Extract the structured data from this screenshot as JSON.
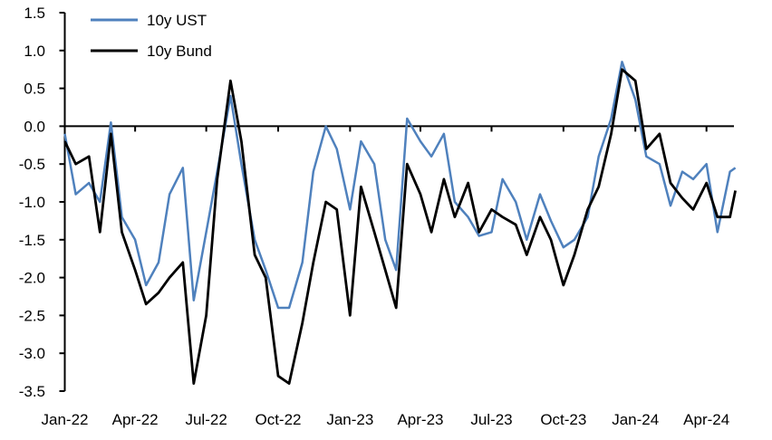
{
  "chart_data": {
    "type": "line",
    "title": "",
    "xlabel": "",
    "ylabel": "",
    "ylim": [
      -3.5,
      1.5
    ],
    "yticks": [
      1.5,
      1.0,
      0.5,
      0.0,
      -0.5,
      -1.0,
      -1.5,
      -2.0,
      -2.5,
      -3.0,
      -3.5
    ],
    "ytick_labels": [
      "1.5",
      "1.0",
      "0.5",
      "0.0",
      "-0.5",
      "-1.0",
      "-1.5",
      "-2.0",
      "-2.5",
      "-3.0",
      "-3.5"
    ],
    "xticks": [
      "2022-01-01",
      "2022-04-01",
      "2022-07-01",
      "2022-10-01",
      "2023-01-01",
      "2023-04-01",
      "2023-07-01",
      "2023-10-01",
      "2024-01-01",
      "2024-04-01"
    ],
    "xtick_labels": [
      "Jan-22",
      "Apr-22",
      "Jul-22",
      "Oct-22",
      "Jan-23",
      "Apr-23",
      "Jul-23",
      "Oct-23",
      "Jan-24",
      "Apr-24"
    ],
    "grid": false,
    "legend": "top-left",
    "x": [
      "2022-01-01",
      "2022-01-15",
      "2022-02-01",
      "2022-02-15",
      "2022-03-01",
      "2022-03-15",
      "2022-04-01",
      "2022-04-15",
      "2022-05-01",
      "2022-05-15",
      "2022-06-01",
      "2022-06-15",
      "2022-07-01",
      "2022-07-15",
      "2022-08-01",
      "2022-08-15",
      "2022-09-01",
      "2022-09-15",
      "2022-10-01",
      "2022-10-15",
      "2022-11-01",
      "2022-11-15",
      "2022-12-01",
      "2022-12-15",
      "2023-01-01",
      "2023-01-15",
      "2023-02-01",
      "2023-02-15",
      "2023-03-01",
      "2023-03-15",
      "2023-04-01",
      "2023-04-15",
      "2023-05-01",
      "2023-05-15",
      "2023-06-01",
      "2023-06-15",
      "2023-07-01",
      "2023-07-15",
      "2023-08-01",
      "2023-08-15",
      "2023-09-01",
      "2023-09-15",
      "2023-10-01",
      "2023-10-15",
      "2023-11-01",
      "2023-11-15",
      "2023-12-01",
      "2023-12-15",
      "2024-01-01",
      "2024-01-15",
      "2024-02-01",
      "2024-02-15",
      "2024-03-01",
      "2024-03-15",
      "2024-04-01",
      "2024-04-15",
      "2024-05-01",
      "2024-05-08"
    ],
    "series": [
      {
        "name": "10y UST",
        "color": "#4f81bd",
        "values": [
          -0.1,
          -0.9,
          -0.75,
          -1.0,
          0.05,
          -1.2,
          -1.5,
          -2.1,
          -1.8,
          -0.9,
          -0.55,
          -2.3,
          -1.4,
          -0.6,
          0.4,
          -0.5,
          -1.5,
          -1.9,
          -2.4,
          -2.4,
          -1.8,
          -0.6,
          0.0,
          -0.3,
          -1.1,
          -0.2,
          -0.5,
          -1.5,
          -1.9,
          0.1,
          -0.2,
          -0.4,
          -0.1,
          -1.0,
          -1.2,
          -1.45,
          -1.4,
          -0.7,
          -1.0,
          -1.5,
          -0.9,
          -1.25,
          -1.6,
          -1.5,
          -1.2,
          -0.4,
          0.1,
          0.85,
          0.35,
          -0.4,
          -0.5,
          -1.05,
          -0.6,
          -0.7,
          -0.5,
          -1.4,
          -0.6,
          -0.55
        ]
      },
      {
        "name": "10y Bund",
        "color": "#000000",
        "values": [
          -0.2,
          -0.5,
          -0.4,
          -1.4,
          -0.1,
          -1.4,
          -1.9,
          -2.35,
          -2.2,
          -2.0,
          -1.8,
          -3.4,
          -2.5,
          -0.7,
          0.6,
          -0.2,
          -1.7,
          -2.0,
          -3.3,
          -3.4,
          -2.6,
          -1.8,
          -1.0,
          -1.1,
          -2.5,
          -0.8,
          -1.4,
          -1.9,
          -2.4,
          -0.5,
          -0.9,
          -1.4,
          -0.7,
          -1.2,
          -0.75,
          -1.4,
          -1.1,
          -1.2,
          -1.3,
          -1.7,
          -1.2,
          -1.5,
          -2.1,
          -1.7,
          -1.1,
          -0.8,
          -0.1,
          0.75,
          0.6,
          -0.3,
          -0.1,
          -0.75,
          -0.95,
          -1.1,
          -0.75,
          -1.2,
          -1.2,
          -0.85
        ]
      }
    ]
  }
}
